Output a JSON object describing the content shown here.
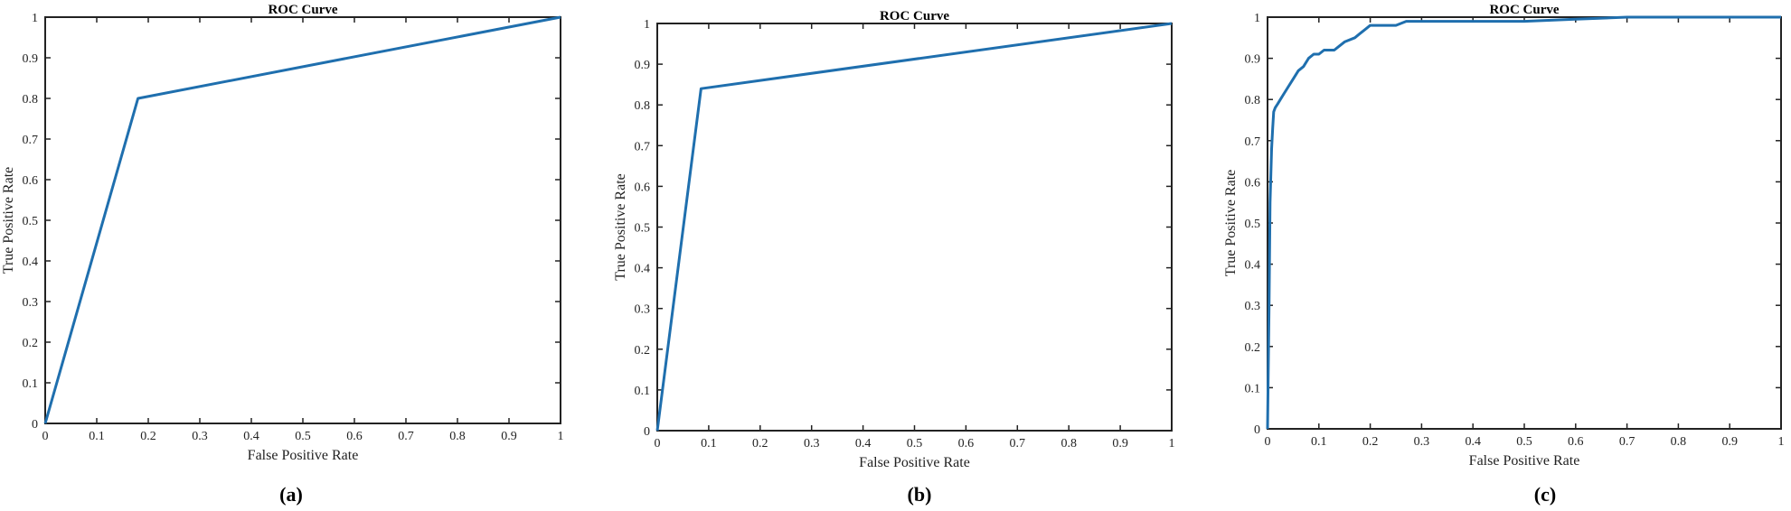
{
  "chart_data": [
    {
      "type": "line",
      "title": "ROC Curve",
      "xlabel": "False Positive Rate",
      "ylabel": "True Positive Rate",
      "xlim": [
        0,
        1
      ],
      "ylim": [
        0,
        1
      ],
      "xticks": [
        "0",
        "0.1",
        "0.2",
        "0.3",
        "0.4",
        "0.5",
        "0.6",
        "0.7",
        "0.8",
        "0.9",
        "1"
      ],
      "yticks": [
        "0",
        "0.1",
        "0.2",
        "0.3",
        "0.4",
        "0.5",
        "0.6",
        "0.7",
        "0.8",
        "0.9",
        "1"
      ],
      "grid": false,
      "color": "#1f6fae",
      "caption": "(a)",
      "x": [
        0,
        0.18,
        1
      ],
      "y": [
        0,
        0.8,
        1
      ]
    },
    {
      "type": "line",
      "title": "ROC Curve",
      "xlabel": "False Positive Rate",
      "ylabel": "True Positive Rate",
      "xlim": [
        0,
        1
      ],
      "ylim": [
        0,
        1
      ],
      "xticks": [
        "0",
        "0.1",
        "0.2",
        "0.3",
        "0.4",
        "0.5",
        "0.6",
        "0.7",
        "0.8",
        "0.9",
        "1"
      ],
      "yticks": [
        "0",
        "0.1",
        "0.2",
        "0.3",
        "0.4",
        "0.5",
        "0.6",
        "0.7",
        "0.8",
        "0.9",
        "1"
      ],
      "grid": false,
      "color": "#1f6fae",
      "caption": "(b)",
      "x": [
        0,
        0.085,
        1
      ],
      "y": [
        0,
        0.84,
        1
      ]
    },
    {
      "type": "line",
      "title": "ROC Curve",
      "xlabel": "False Positive Rate",
      "ylabel": "True Positive Rate",
      "xlim": [
        0,
        1
      ],
      "ylim": [
        0,
        1
      ],
      "xticks": [
        "0",
        "0.1",
        "0.2",
        "0.3",
        "0.4",
        "0.5",
        "0.6",
        "0.7",
        "0.8",
        "0.9",
        "1"
      ],
      "yticks": [
        "0",
        "0.1",
        "0.2",
        "0.3",
        "0.4",
        "0.5",
        "0.6",
        "0.7",
        "0.8",
        "0.9",
        "1"
      ],
      "grid": false,
      "color": "#1f6fae",
      "caption": "(c)",
      "x": [
        0,
        0.003,
        0.005,
        0.008,
        0.01,
        0.012,
        0.015,
        0.02,
        0.025,
        0.03,
        0.04,
        0.05,
        0.06,
        0.07,
        0.08,
        0.09,
        0.1,
        0.11,
        0.13,
        0.14,
        0.15,
        0.17,
        0.18,
        0.19,
        0.2,
        0.21,
        0.25,
        0.27,
        0.3,
        0.4,
        0.5,
        0.6,
        0.7,
        0.8,
        0.9,
        1
      ],
      "y": [
        0,
        0.3,
        0.55,
        0.68,
        0.73,
        0.77,
        0.78,
        0.79,
        0.8,
        0.81,
        0.83,
        0.85,
        0.87,
        0.88,
        0.9,
        0.91,
        0.91,
        0.92,
        0.92,
        0.93,
        0.94,
        0.95,
        0.96,
        0.97,
        0.98,
        0.98,
        0.98,
        0.99,
        0.99,
        0.99,
        0.99,
        0.995,
        1,
        1,
        1,
        1
      ]
    }
  ]
}
